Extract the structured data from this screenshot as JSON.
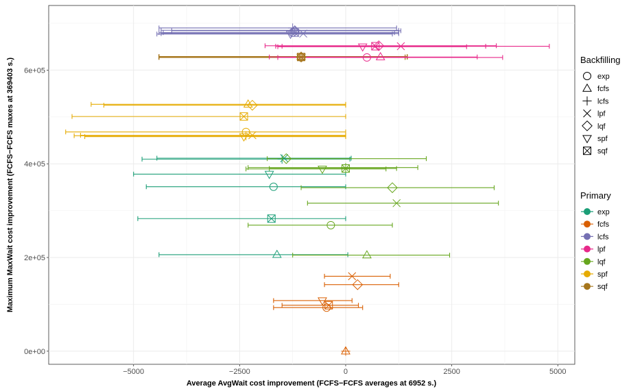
{
  "chart_data": {
    "type": "scatter",
    "title": "",
    "xlabel": "Average AvgWait cost improvement (FCFS−FCFS averages at  6952  s.)",
    "ylabel": "Maximum MaxWait cost improvement (FCFS−FCFS maxes at  369403  s.)",
    "xlim": [
      -7000,
      5400
    ],
    "ylim": [
      -28000,
      738000
    ],
    "x_ticks": [
      -5000,
      -2500,
      0,
      2500,
      5000
    ],
    "x_tick_labels": [
      "−5000",
      "−2500",
      "0",
      "2500",
      "5000"
    ],
    "y_ticks": [
      0,
      200000,
      400000,
      600000
    ],
    "y_tick_labels": [
      "0e+00",
      "2e+05",
      "4e+05",
      "6e+05"
    ],
    "grid": true,
    "legend": {
      "placement": "right",
      "shape_title": "Backfilling",
      "color_title": "Primary",
      "shapes": [
        {
          "key": "exp",
          "label": "exp",
          "shape": "circle-icon"
        },
        {
          "key": "fcfs",
          "label": "fcfs",
          "shape": "triangle-up-icon"
        },
        {
          "key": "lcfs",
          "label": "lcfs",
          "shape": "plus-icon"
        },
        {
          "key": "lpf",
          "label": "lpf",
          "shape": "cross-icon"
        },
        {
          "key": "lqf",
          "label": "lqf",
          "shape": "diamond-icon"
        },
        {
          "key": "spf",
          "label": "spf",
          "shape": "triangle-down-icon"
        },
        {
          "key": "sqf",
          "label": "sqf",
          "shape": "square-cross-icon"
        }
      ],
      "colors": [
        {
          "key": "exp",
          "label": "exp",
          "color": "#1b9e77"
        },
        {
          "key": "fcfs",
          "label": "fcfs",
          "color": "#d95f02"
        },
        {
          "key": "lcfs",
          "label": "lcfs",
          "color": "#7570b3"
        },
        {
          "key": "lpf",
          "label": "lpf",
          "color": "#e7298a"
        },
        {
          "key": "lqf",
          "label": "lqf",
          "color": "#66a61e"
        },
        {
          "key": "spf",
          "label": "spf",
          "color": "#e6ab02"
        },
        {
          "key": "sqf",
          "label": "sqf",
          "color": "#a6761d"
        }
      ]
    },
    "points": [
      {
        "primary": "fcfs",
        "backfill": "exp",
        "x": -450,
        "y": 93000,
        "xmin": -1700,
        "xmax": 400
      },
      {
        "primary": "fcfs",
        "backfill": "fcfs",
        "x": 0,
        "y": 0,
        "xmin": 0,
        "xmax": 0
      },
      {
        "primary": "fcfs",
        "backfill": "lcfs",
        "x": 0,
        "y": 0,
        "xmin": 0,
        "xmax": 0
      },
      {
        "primary": "fcfs",
        "backfill": "lpf",
        "x": 150,
        "y": 160000,
        "xmin": -500,
        "xmax": 1050
      },
      {
        "primary": "fcfs",
        "backfill": "lqf",
        "x": 280,
        "y": 142000,
        "xmin": -500,
        "xmax": 1250
      },
      {
        "primary": "fcfs",
        "backfill": "spf",
        "x": -550,
        "y": 108000,
        "xmin": -1700,
        "xmax": 150
      },
      {
        "primary": "fcfs",
        "backfill": "sqf",
        "x": -400,
        "y": 98000,
        "xmin": -1500,
        "xmax": 300
      },
      {
        "primary": "exp",
        "backfill": "exp",
        "x": -1700,
        "y": 351000,
        "xmin": -4700,
        "xmax": 0
      },
      {
        "primary": "exp",
        "backfill": "fcfs",
        "x": -1620,
        "y": 206000,
        "xmin": -4400,
        "xmax": 50
      },
      {
        "primary": "exp",
        "backfill": "lcfs",
        "x": -1500,
        "y": 410000,
        "xmin": -4800,
        "xmax": 100
      },
      {
        "primary": "exp",
        "backfill": "lpf",
        "x": -1450,
        "y": 412000,
        "xmin": -4450,
        "xmax": 130
      },
      {
        "primary": "exp",
        "backfill": "spf",
        "x": -1800,
        "y": 378000,
        "xmin": -5000,
        "xmax": 0
      },
      {
        "primary": "exp",
        "backfill": "sqf",
        "x": -1750,
        "y": 283000,
        "xmin": -4900,
        "xmax": 0
      },
      {
        "primary": "lqf",
        "backfill": "exp",
        "x": -350,
        "y": 269000,
        "xmin": -2300,
        "xmax": 1100
      },
      {
        "primary": "lqf",
        "backfill": "fcfs",
        "x": 500,
        "y": 205000,
        "xmin": -1250,
        "xmax": 2450
      },
      {
        "primary": "lqf",
        "backfill": "lcfs",
        "x": 0,
        "y": 392000,
        "xmin": -2300,
        "xmax": 1700
      },
      {
        "primary": "lqf",
        "backfill": "lpf",
        "x": 1200,
        "y": 316000,
        "xmin": -900,
        "xmax": 3600
      },
      {
        "primary": "lqf",
        "backfill": "lqf",
        "x": -1400,
        "y": 411000,
        "xmin": -1850,
        "xmax": 1900
      },
      {
        "primary": "lqf",
        "backfill": "lqf",
        "x": 1100,
        "y": 349000,
        "xmin": -1050,
        "xmax": 3500
      },
      {
        "primary": "lqf",
        "backfill": "spf",
        "x": -550,
        "y": 389000,
        "xmin": -2350,
        "xmax": 950
      },
      {
        "primary": "lqf",
        "backfill": "sqf",
        "x": 0,
        "y": 390000,
        "xmin": -1800,
        "xmax": 1200
      },
      {
        "primary": "spf",
        "backfill": "exp",
        "x": -2350,
        "y": 468000,
        "xmin": -6600,
        "xmax": 0
      },
      {
        "primary": "spf",
        "backfill": "fcfs",
        "x": -2300,
        "y": 527000,
        "xmin": -6000,
        "xmax": 0
      },
      {
        "primary": "spf",
        "backfill": "lcfs",
        "x": -2350,
        "y": 460000,
        "xmin": -6400,
        "xmax": 0
      },
      {
        "primary": "spf",
        "backfill": "lpf",
        "x": -2200,
        "y": 461000,
        "xmin": -6250,
        "xmax": 0
      },
      {
        "primary": "spf",
        "backfill": "lqf",
        "x": -2200,
        "y": 525000,
        "xmin": -5700,
        "xmax": 0
      },
      {
        "primary": "spf",
        "backfill": "spf",
        "x": -2400,
        "y": 458000,
        "xmin": -6150,
        "xmax": 0
      },
      {
        "primary": "spf",
        "backfill": "sqf",
        "x": -2400,
        "y": 501000,
        "xmin": -6450,
        "xmax": 0
      },
      {
        "primary": "sqf",
        "backfill": "exp",
        "x": -1050,
        "y": 627000,
        "xmin": -4400,
        "xmax": 1400
      },
      {
        "primary": "sqf",
        "backfill": "fcfs",
        "x": -1050,
        "y": 629000,
        "xmin": -4400,
        "xmax": 1450
      },
      {
        "primary": "sqf",
        "backfill": "lcfs",
        "x": -1050,
        "y": 628000,
        "xmin": -4400,
        "xmax": 1400
      },
      {
        "primary": "sqf",
        "backfill": "lpf",
        "x": -1050,
        "y": 628000,
        "xmin": -4400,
        "xmax": 1450
      },
      {
        "primary": "sqf",
        "backfill": "lqf",
        "x": -1050,
        "y": 628000,
        "xmin": -4400,
        "xmax": 1400
      },
      {
        "primary": "sqf",
        "backfill": "spf",
        "x": -1050,
        "y": 628000,
        "xmin": -4400,
        "xmax": 1450
      },
      {
        "primary": "sqf",
        "backfill": "sqf",
        "x": -1050,
        "y": 628000,
        "xmin": -4400,
        "xmax": 1450
      },
      {
        "primary": "lpf",
        "backfill": "exp",
        "x": 500,
        "y": 627000,
        "xmin": -1600,
        "xmax": 3700
      },
      {
        "primary": "lpf",
        "backfill": "fcfs",
        "x": 820,
        "y": 628000,
        "xmin": -1800,
        "xmax": 3100
      },
      {
        "primary": "lpf",
        "backfill": "lpf",
        "x": 1300,
        "y": 651000,
        "xmin": -1500,
        "xmax": 4800
      },
      {
        "primary": "lpf",
        "backfill": "lqf",
        "x": 780,
        "y": 652000,
        "xmin": -1900,
        "xmax": 3550
      },
      {
        "primary": "lpf",
        "backfill": "spf",
        "x": 400,
        "y": 650000,
        "xmin": -1600,
        "xmax": 2850
      },
      {
        "primary": "lpf",
        "backfill": "sqf",
        "x": 700,
        "y": 651000,
        "xmin": -1650,
        "xmax": 3300
      },
      {
        "primary": "lcfs",
        "backfill": "exp",
        "x": -1250,
        "y": 680000,
        "xmin": -4400,
        "xmax": 1150
      },
      {
        "primary": "lcfs",
        "backfill": "fcfs",
        "x": -1200,
        "y": 685000,
        "xmin": -4350,
        "xmax": 1250
      },
      {
        "primary": "lcfs",
        "backfill": "lcfs",
        "x": -1250,
        "y": 690000,
        "xmin": -4400,
        "xmax": 1200
      },
      {
        "primary": "lcfs",
        "backfill": "lpf",
        "x": -1000,
        "y": 678000,
        "xmin": -4350,
        "xmax": 1250
      },
      {
        "primary": "lcfs",
        "backfill": "lqf",
        "x": -1200,
        "y": 684000,
        "xmin": -4100,
        "xmax": 1300
      },
      {
        "primary": "lcfs",
        "backfill": "spf",
        "x": -1300,
        "y": 677000,
        "xmin": -4450,
        "xmax": 1100
      },
      {
        "primary": "lcfs",
        "backfill": "sqf",
        "x": -1200,
        "y": 680000,
        "xmin": -4300,
        "xmax": 1250
      }
    ]
  }
}
